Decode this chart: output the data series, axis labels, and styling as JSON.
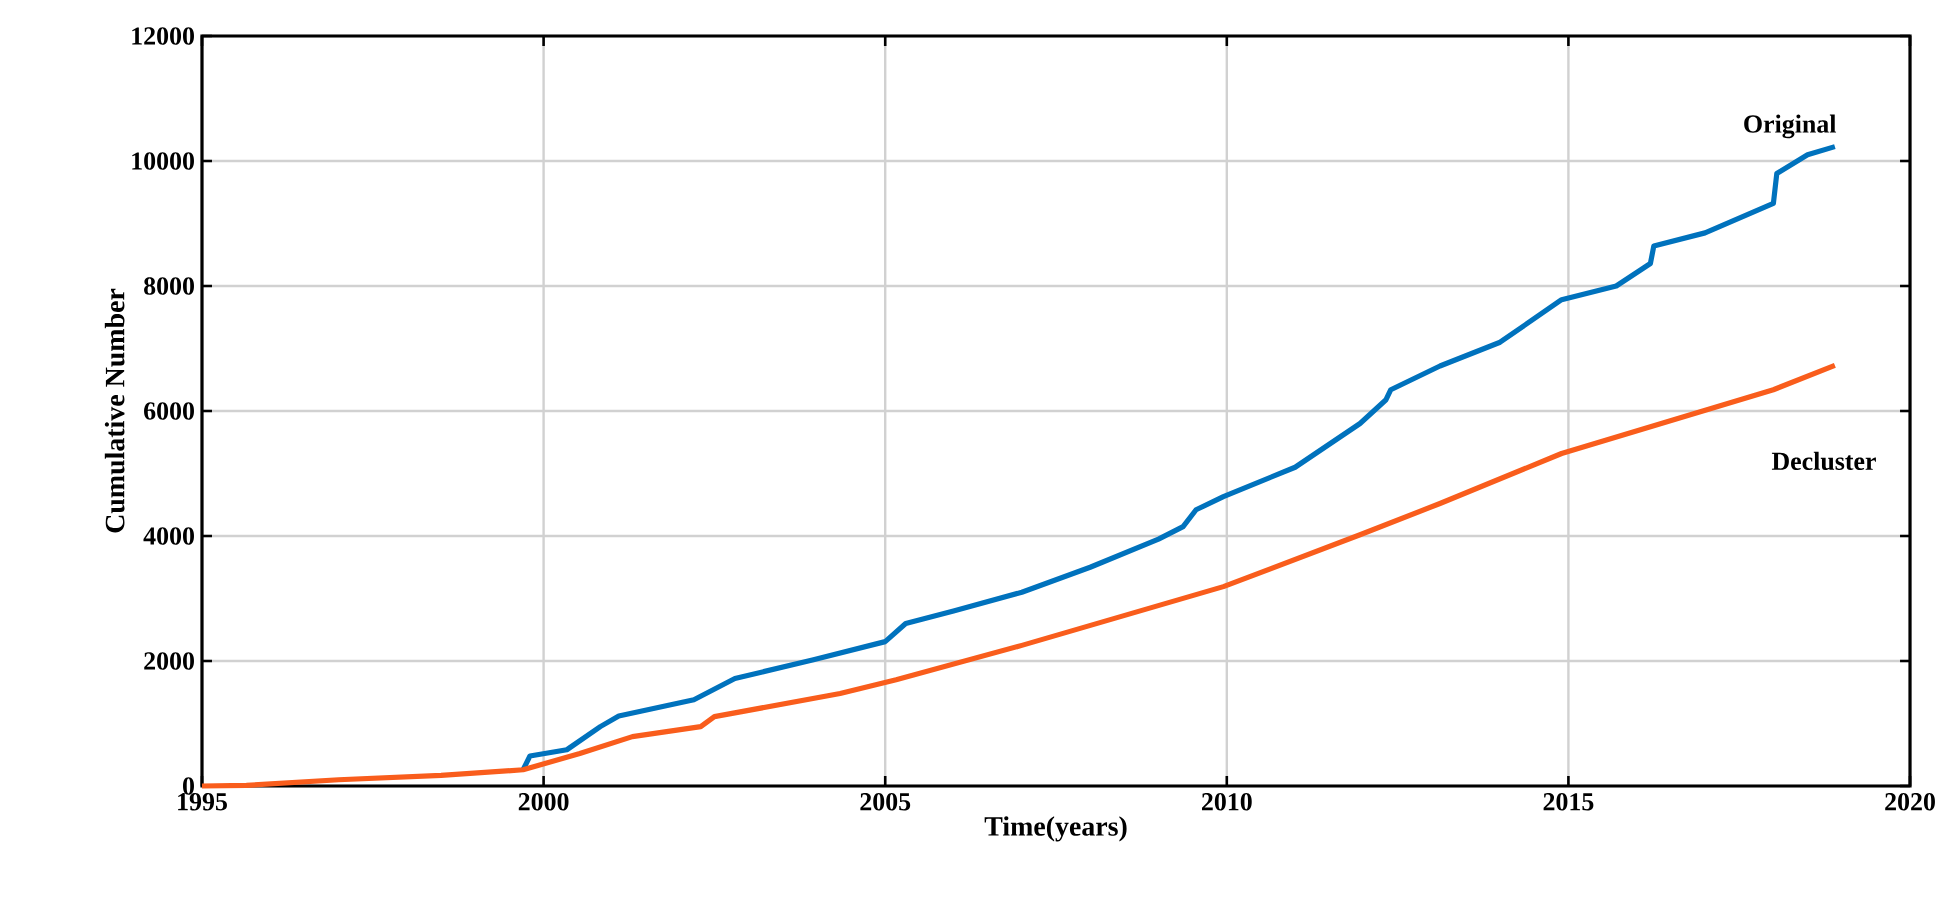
{
  "chart_data": {
    "type": "line",
    "xlabel": "Time(years)",
    "ylabel": "Cumulative Number",
    "xlim": [
      1995,
      2020
    ],
    "ylim": [
      0,
      12000
    ],
    "xticks": [
      1995,
      2000,
      2005,
      2010,
      2015,
      2020
    ],
    "yticks": [
      0,
      2000,
      4000,
      6000,
      8000,
      10000,
      12000
    ],
    "grid": true,
    "legend": false,
    "marker": "none",
    "line_style": "solid",
    "series": [
      {
        "name": "Original",
        "color": "#0072bd",
        "x": [
          1999.7,
          1999.8,
          2000.34,
          2000.83,
          2001.1,
          2002.2,
          2002.8,
          2003.95,
          2005.0,
          2005.3,
          2006,
          2007,
          2008,
          2009,
          2009.36,
          2009.55,
          2009.95,
          2011,
          2011.95,
          2012.33,
          2012.4,
          2013.12,
          2014,
          2014.9,
          2015.7,
          2016.2,
          2016.25,
          2017,
          2018,
          2018.05,
          2018.5,
          2018.9
        ],
        "values": [
          260,
          480,
          580,
          950,
          1120,
          1380,
          1720,
          2020,
          2310,
          2600,
          2800,
          3100,
          3500,
          3950,
          4150,
          4420,
          4630,
          5100,
          5800,
          6180,
          6340,
          6720,
          7100,
          7780,
          8000,
          8360,
          8640,
          8850,
          9320,
          9800,
          10100,
          10230
        ]
      },
      {
        "name": "Decluster",
        "color": "#f95d1c",
        "x": [
          1995,
          1995.65,
          1997,
          1998.5,
          1999.7,
          2000.53,
          2001.3,
          2002.3,
          2002.5,
          2004.34,
          2005.16,
          2007,
          2009.95,
          2011.95,
          2013.12,
          2014.9,
          2018,
          2018.9
        ],
        "values": [
          0,
          10,
          100,
          170,
          260,
          520,
          790,
          950,
          1110,
          1480,
          1700,
          2250,
          3190,
          4020,
          4520,
          5320,
          6340,
          6730
        ]
      }
    ]
  }
}
